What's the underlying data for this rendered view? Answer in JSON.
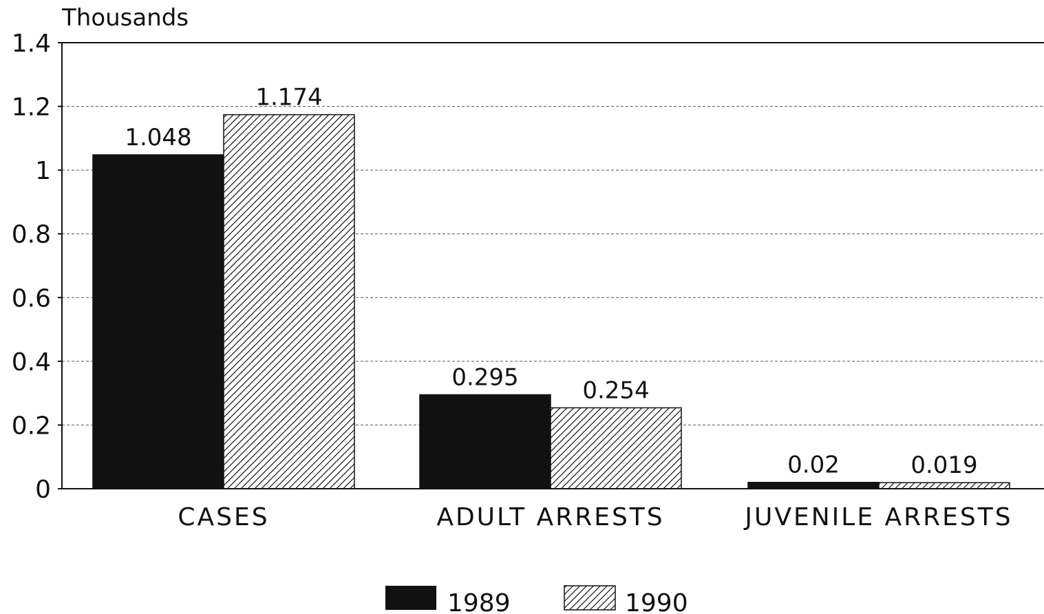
{
  "chart_data": {
    "type": "bar",
    "ylabel": "Thousands",
    "ylim": [
      0,
      1.4
    ],
    "yticks": [
      "0",
      "0.2",
      "0.4",
      "0.6",
      "0.8",
      "1",
      "1.2",
      "1.4"
    ],
    "ytick_values": [
      0,
      0.2,
      0.4,
      0.6,
      0.8,
      1,
      1.2,
      1.4
    ],
    "grid": "horizontal dashed",
    "legend_position": "bottom-center",
    "categories": [
      "CASES",
      "ADULT ARRESTS",
      "JUVENILE ARRESTS"
    ],
    "series": [
      {
        "name": "1989",
        "values": [
          1.048,
          0.295,
          0.02
        ],
        "labels": [
          "1.048",
          "0.295",
          "0.02"
        ],
        "color": "#111111",
        "fill": "solid"
      },
      {
        "name": "1990",
        "values": [
          1.174,
          0.254,
          0.019
        ],
        "labels": [
          "1.174",
          "0.254",
          "0.019"
        ],
        "color": "#111111",
        "fill": "hatched"
      }
    ]
  }
}
